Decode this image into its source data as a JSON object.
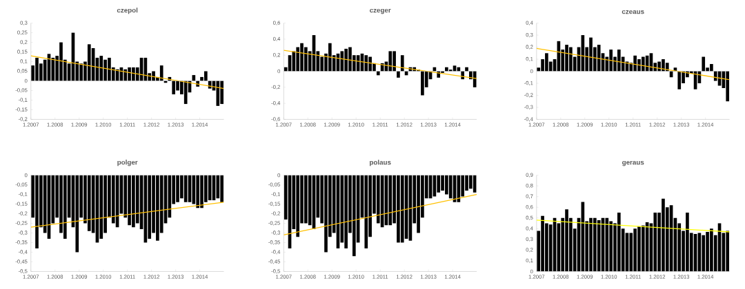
{
  "chart_data": [
    {
      "type": "bar",
      "title": "czepol",
      "x": [
        "2007-02",
        "2007-04",
        "2007-06",
        "2007-08",
        "2007-10",
        "2007-12",
        "2008-02",
        "2008-04",
        "2008-06",
        "2008-08",
        "2008-10",
        "2008-12",
        "2009-02",
        "2009-04",
        "2009-06",
        "2009-08",
        "2009-10",
        "2009-12",
        "2010-02",
        "2010-04",
        "2010-06",
        "2010-08",
        "2010-10",
        "2010-12",
        "2011-02",
        "2011-04",
        "2011-06",
        "2011-08",
        "2011-10",
        "2011-12",
        "2012-02",
        "2012-04",
        "2012-06",
        "2012-08",
        "2012-10",
        "2012-12",
        "2013-02",
        "2013-04",
        "2013-06",
        "2013-08",
        "2013-10",
        "2013-12",
        "2014-02",
        "2014-04",
        "2014-06",
        "2014-08",
        "2014-10",
        "2014-12"
      ],
      "series": [
        {
          "color": "#000000",
          "values": [
            0.08,
            0.12,
            0.09,
            0.11,
            0.14,
            0.12,
            0.13,
            0.2,
            0.11,
            0.09,
            0.25,
            0.1,
            0.09,
            0.1,
            0.19,
            0.17,
            0.12,
            0.13,
            0.11,
            0.12,
            0.07,
            0.06,
            0.07,
            0.06,
            0.07,
            0.07,
            0.07,
            0.12,
            0.12,
            0.04,
            0.05,
            0.02,
            0.08,
            -0.01,
            0.02,
            -0.07,
            -0.05,
            -0.07,
            -0.12,
            -0.06,
            0.03,
            -0.03,
            0.02,
            0.05,
            -0.04,
            -0.05,
            -0.13,
            -0.12
          ]
        },
        {
          "type": "line",
          "color": "#ffc000",
          "x": [
            "2007-01",
            "2015-01"
          ],
          "values": [
            0.13,
            -0.04
          ]
        }
      ],
      "xlim": [
        "2007-01",
        "2015-01"
      ],
      "xticks": [
        {
          "value": "2007-01",
          "label": "1.2007"
        },
        {
          "value": "2008-01",
          "label": "1.2008"
        },
        {
          "value": "2009-01",
          "label": "1.2009"
        },
        {
          "value": "2010-01",
          "label": "1.2010"
        },
        {
          "value": "2011-01",
          "label": "1.2011"
        },
        {
          "value": "2012-01",
          "label": "1.2012"
        },
        {
          "value": "2013-01",
          "label": "1.2013"
        },
        {
          "value": "2014-01",
          "label": "1.2014"
        }
      ],
      "ylim": [
        -0.2,
        0.3
      ],
      "yticks": [
        {
          "value": -0.2,
          "label": "-0,2"
        },
        {
          "value": -0.15,
          "label": "-0,15"
        },
        {
          "value": -0.1,
          "label": "-0,1"
        },
        {
          "value": -0.05,
          "label": "-0,05"
        },
        0,
        {
          "value": 0.05,
          "label": "0,05"
        },
        {
          "value": 0.1,
          "label": "0,1"
        },
        {
          "value": 0.15,
          "label": "0,15"
        },
        {
          "value": 0.2,
          "label": "0,2"
        },
        {
          "value": 0.25,
          "label": "0,25"
        },
        {
          "value": 0.3,
          "label": "0,3"
        }
      ]
    },
    {
      "type": "bar",
      "title": "czeger",
      "x": [
        "2007-02",
        "2007-04",
        "2007-06",
        "2007-08",
        "2007-10",
        "2007-12",
        "2008-02",
        "2008-04",
        "2008-06",
        "2008-08",
        "2008-10",
        "2008-12",
        "2009-02",
        "2009-04",
        "2009-06",
        "2009-08",
        "2009-10",
        "2009-12",
        "2010-02",
        "2010-04",
        "2010-06",
        "2010-08",
        "2010-10",
        "2010-12",
        "2011-02",
        "2011-04",
        "2011-06",
        "2011-08",
        "2011-10",
        "2011-12",
        "2012-02",
        "2012-04",
        "2012-06",
        "2012-08",
        "2012-10",
        "2012-12",
        "2013-02",
        "2013-04",
        "2013-06",
        "2013-08",
        "2013-10",
        "2013-12",
        "2014-02",
        "2014-04",
        "2014-06",
        "2014-08",
        "2014-10",
        "2014-12"
      ],
      "series": [
        {
          "color": "#000000",
          "values": [
            0.05,
            0.2,
            0.25,
            0.3,
            0.35,
            0.3,
            0.25,
            0.45,
            0.25,
            0.18,
            0.22,
            0.35,
            0.2,
            0.22,
            0.25,
            0.28,
            0.3,
            0.2,
            0.2,
            0.22,
            0.2,
            0.18,
            0.1,
            -0.05,
            0.1,
            0.12,
            0.25,
            0.25,
            -0.08,
            0.2,
            -0.05,
            0.05,
            0.05,
            0.02,
            -0.3,
            -0.2,
            -0.1,
            0.05,
            -0.08,
            -0.02,
            0.05,
            0.02,
            0.07,
            0.05,
            -0.1,
            0.05,
            -0.1,
            -0.2
          ]
        },
        {
          "type": "line",
          "color": "#ffc000",
          "x": [
            "2007-01",
            "2015-01"
          ],
          "values": [
            0.26,
            -0.09
          ]
        }
      ],
      "xlim": [
        "2007-01",
        "2015-01"
      ],
      "xticks": [
        {
          "value": "2007-01",
          "label": "1.2007"
        },
        {
          "value": "2008-01",
          "label": "1.2008"
        },
        {
          "value": "2009-01",
          "label": "1.2009"
        },
        {
          "value": "2010-01",
          "label": "1.2010"
        },
        {
          "value": "2011-01",
          "label": "1.2011"
        },
        {
          "value": "2012-01",
          "label": "1.2012"
        },
        {
          "value": "2013-01",
          "label": "1.2013"
        },
        {
          "value": "2014-01",
          "label": "1.2014"
        }
      ],
      "ylim": [
        -0.6,
        0.6
      ],
      "yticks": [
        {
          "value": -0.6,
          "label": "-0,6"
        },
        {
          "value": -0.4,
          "label": "-0,4"
        },
        {
          "value": -0.2,
          "label": "-0,2"
        },
        0,
        {
          "value": 0.2,
          "label": "0,2"
        },
        {
          "value": 0.4,
          "label": "0,4"
        },
        {
          "value": 0.6,
          "label": "0,6"
        }
      ]
    },
    {
      "type": "bar",
      "title": "czeaus",
      "x": [
        "2007-02",
        "2007-04",
        "2007-06",
        "2007-08",
        "2007-10",
        "2007-12",
        "2008-02",
        "2008-04",
        "2008-06",
        "2008-08",
        "2008-10",
        "2008-12",
        "2009-02",
        "2009-04",
        "2009-06",
        "2009-08",
        "2009-10",
        "2009-12",
        "2010-02",
        "2010-04",
        "2010-06",
        "2010-08",
        "2010-10",
        "2010-12",
        "2011-02",
        "2011-04",
        "2011-06",
        "2011-08",
        "2011-10",
        "2011-12",
        "2012-02",
        "2012-04",
        "2012-06",
        "2012-08",
        "2012-10",
        "2012-12",
        "2013-02",
        "2013-04",
        "2013-06",
        "2013-08",
        "2013-10",
        "2013-12",
        "2014-02",
        "2014-04",
        "2014-06",
        "2014-08",
        "2014-10",
        "2014-12"
      ],
      "series": [
        {
          "color": "#000000",
          "values": [
            0.03,
            0.1,
            0.15,
            0.08,
            0.1,
            0.25,
            0.18,
            0.22,
            0.2,
            0.12,
            0.2,
            0.3,
            0.2,
            0.28,
            0.2,
            0.22,
            0.15,
            0.12,
            0.18,
            0.12,
            0.18,
            0.12,
            0.08,
            0.07,
            0.13,
            0.1,
            0.12,
            0.13,
            0.15,
            0.07,
            0.08,
            0.1,
            0.07,
            -0.05,
            0.03,
            -0.15,
            -0.1,
            -0.05,
            -0.02,
            -0.15,
            -0.1,
            0.12,
            0.03,
            0.06,
            -0.08,
            -0.12,
            -0.14,
            -0.25
          ]
        },
        {
          "type": "line",
          "color": "#ffc000",
          "x": [
            "2007-01",
            "2015-01"
          ],
          "values": [
            0.19,
            -0.07
          ]
        }
      ],
      "xlim": [
        "2007-01",
        "2015-01"
      ],
      "xticks": [
        {
          "value": "2007-01",
          "label": "1.2007"
        },
        {
          "value": "2008-01",
          "label": "1.2008"
        },
        {
          "value": "2009-01",
          "label": "1.2009"
        },
        {
          "value": "2010-01",
          "label": "1.2010"
        },
        {
          "value": "2011-01",
          "label": "1.2011"
        },
        {
          "value": "2012-01",
          "label": "1.2012"
        },
        {
          "value": "2013-01",
          "label": "1.2013"
        },
        {
          "value": "2014-01",
          "label": "1.2014"
        }
      ],
      "ylim": [
        -0.4,
        0.4
      ],
      "yticks": [
        {
          "value": -0.4,
          "label": "-0,4"
        },
        {
          "value": -0.3,
          "label": "-0,3"
        },
        {
          "value": -0.2,
          "label": "-0,2"
        },
        {
          "value": -0.1,
          "label": "-0,1"
        },
        0,
        {
          "value": 0.1,
          "label": "0,1"
        },
        {
          "value": 0.2,
          "label": "0,2"
        },
        {
          "value": 0.3,
          "label": "0,3"
        },
        {
          "value": 0.4,
          "label": "0,4"
        }
      ]
    },
    {
      "type": "bar",
      "title": "polger",
      "x": [
        "2007-02",
        "2007-04",
        "2007-06",
        "2007-08",
        "2007-10",
        "2007-12",
        "2008-02",
        "2008-04",
        "2008-06",
        "2008-08",
        "2008-10",
        "2008-12",
        "2009-02",
        "2009-04",
        "2009-06",
        "2009-08",
        "2009-10",
        "2009-12",
        "2010-02",
        "2010-04",
        "2010-06",
        "2010-08",
        "2010-10",
        "2010-12",
        "2011-02",
        "2011-04",
        "2011-06",
        "2011-08",
        "2011-10",
        "2011-12",
        "2012-02",
        "2012-04",
        "2012-06",
        "2012-08",
        "2012-10",
        "2012-12",
        "2013-02",
        "2013-04",
        "2013-06",
        "2013-08",
        "2013-10",
        "2013-12",
        "2014-02",
        "2014-04",
        "2014-06",
        "2014-08",
        "2014-10",
        "2014-12"
      ],
      "series": [
        {
          "color": "#000000",
          "values": [
            -0.22,
            -0.38,
            -0.27,
            -0.3,
            -0.33,
            -0.25,
            -0.22,
            -0.3,
            -0.33,
            -0.22,
            -0.27,
            -0.4,
            -0.22,
            -0.25,
            -0.29,
            -0.3,
            -0.35,
            -0.33,
            -0.3,
            -0.22,
            -0.25,
            -0.27,
            -0.2,
            -0.22,
            -0.26,
            -0.27,
            -0.25,
            -0.28,
            -0.35,
            -0.33,
            -0.3,
            -0.34,
            -0.3,
            -0.25,
            -0.22,
            -0.15,
            -0.14,
            -0.12,
            -0.14,
            -0.14,
            -0.15,
            -0.17,
            -0.17,
            -0.14,
            -0.13,
            -0.13,
            -0.12,
            -0.14
          ]
        },
        {
          "type": "line",
          "color": "#ffc000",
          "x": [
            "2007-01",
            "2015-01"
          ],
          "values": [
            -0.27,
            -0.14
          ]
        }
      ],
      "xlim": [
        "2007-01",
        "2015-01"
      ],
      "xticks": [
        {
          "value": "2007-01",
          "label": "1.2007"
        },
        {
          "value": "2008-01",
          "label": "1.2008"
        },
        {
          "value": "2009-01",
          "label": "1.2009"
        },
        {
          "value": "2010-01",
          "label": "1.2010"
        },
        {
          "value": "2011-01",
          "label": "1.2011"
        },
        {
          "value": "2012-01",
          "label": "1.2012"
        },
        {
          "value": "2013-01",
          "label": "1.2013"
        },
        {
          "value": "2014-01",
          "label": "1.2014"
        }
      ],
      "ylim": [
        -0.5,
        0
      ],
      "yticks": [
        {
          "value": -0.5,
          "label": "-0,5"
        },
        {
          "value": -0.45,
          "label": "-0,45"
        },
        {
          "value": -0.4,
          "label": "-0,4"
        },
        {
          "value": -0.35,
          "label": "-0,35"
        },
        {
          "value": -0.3,
          "label": "-0,3"
        },
        {
          "value": -0.25,
          "label": "-0,25"
        },
        {
          "value": -0.2,
          "label": "-0,2"
        },
        {
          "value": -0.15,
          "label": "-0,15"
        },
        {
          "value": -0.1,
          "label": "-0,1"
        },
        {
          "value": -0.05,
          "label": "-0,05"
        },
        0
      ]
    },
    {
      "type": "bar",
      "title": "polaus",
      "x": [
        "2007-02",
        "2007-04",
        "2007-06",
        "2007-08",
        "2007-10",
        "2007-12",
        "2008-02",
        "2008-04",
        "2008-06",
        "2008-08",
        "2008-10",
        "2008-12",
        "2009-02",
        "2009-04",
        "2009-06",
        "2009-08",
        "2009-10",
        "2009-12",
        "2010-02",
        "2010-04",
        "2010-06",
        "2010-08",
        "2010-10",
        "2010-12",
        "2011-02",
        "2011-04",
        "2011-06",
        "2011-08",
        "2011-10",
        "2011-12",
        "2012-02",
        "2012-04",
        "2012-06",
        "2012-08",
        "2012-10",
        "2012-12",
        "2013-02",
        "2013-04",
        "2013-06",
        "2013-08",
        "2013-10",
        "2013-12",
        "2014-02",
        "2014-04",
        "2014-06",
        "2014-08",
        "2014-10",
        "2014-12"
      ],
      "series": [
        {
          "color": "#000000",
          "values": [
            -0.23,
            -0.38,
            -0.28,
            -0.32,
            -0.25,
            -0.25,
            -0.26,
            -0.28,
            -0.22,
            -0.25,
            -0.4,
            -0.32,
            -0.3,
            -0.38,
            -0.35,
            -0.38,
            -0.3,
            -0.42,
            -0.35,
            -0.22,
            -0.38,
            -0.32,
            -0.2,
            -0.25,
            -0.27,
            -0.26,
            -0.26,
            -0.25,
            -0.35,
            -0.35,
            -0.33,
            -0.34,
            -0.25,
            -0.3,
            -0.22,
            -0.12,
            -0.12,
            -0.11,
            -0.09,
            -0.08,
            -0.1,
            -0.12,
            -0.14,
            -0.14,
            -0.11,
            -0.08,
            -0.07,
            -0.09
          ]
        },
        {
          "type": "line",
          "color": "#ffc000",
          "x": [
            "2007-01",
            "2015-01"
          ],
          "values": [
            -0.31,
            -0.1
          ]
        }
      ],
      "xlim": [
        "2007-01",
        "2015-01"
      ],
      "xticks": [
        {
          "value": "2007-01",
          "label": "1.2007"
        },
        {
          "value": "2008-01",
          "label": "1.2008"
        },
        {
          "value": "2009-01",
          "label": "1.2009"
        },
        {
          "value": "2010-01",
          "label": "1.2010"
        },
        {
          "value": "2011-01",
          "label": "1.2011"
        },
        {
          "value": "2012-01",
          "label": "1.2012"
        },
        {
          "value": "2013-01",
          "label": "1.2013"
        },
        {
          "value": "2014-01",
          "label": "1.2014"
        }
      ],
      "ylim": [
        -0.5,
        0
      ],
      "yticks": [
        {
          "value": -0.5,
          "label": "-0,5"
        },
        {
          "value": -0.45,
          "label": "-0,45"
        },
        {
          "value": -0.4,
          "label": "-0,4"
        },
        {
          "value": -0.35,
          "label": "-0,35"
        },
        {
          "value": -0.3,
          "label": "-0,3"
        },
        {
          "value": -0.25,
          "label": "-0,25"
        },
        {
          "value": -0.2,
          "label": "-0,2"
        },
        {
          "value": -0.15,
          "label": "-0,15"
        },
        {
          "value": -0.1,
          "label": "-0,1"
        },
        {
          "value": -0.05,
          "label": "-0,05"
        },
        0
      ]
    },
    {
      "type": "bar",
      "title": "geraus",
      "x": [
        "2007-02",
        "2007-04",
        "2007-06",
        "2007-08",
        "2007-10",
        "2007-12",
        "2008-02",
        "2008-04",
        "2008-06",
        "2008-08",
        "2008-10",
        "2008-12",
        "2009-02",
        "2009-04",
        "2009-06",
        "2009-08",
        "2009-10",
        "2009-12",
        "2010-02",
        "2010-04",
        "2010-06",
        "2010-08",
        "2010-10",
        "2010-12",
        "2011-02",
        "2011-04",
        "2011-06",
        "2011-08",
        "2011-10",
        "2011-12",
        "2012-02",
        "2012-04",
        "2012-06",
        "2012-08",
        "2012-10",
        "2012-12",
        "2013-02",
        "2013-04",
        "2013-06",
        "2013-08",
        "2013-10",
        "2013-12",
        "2014-02",
        "2014-04",
        "2014-06",
        "2014-08",
        "2014-10",
        "2014-12"
      ],
      "series": [
        {
          "color": "#000000",
          "values": [
            0.38,
            0.52,
            0.45,
            0.44,
            0.5,
            0.45,
            0.5,
            0.58,
            0.5,
            0.4,
            0.5,
            0.65,
            0.47,
            0.5,
            0.5,
            0.48,
            0.5,
            0.5,
            0.47,
            0.45,
            0.55,
            0.4,
            0.36,
            0.36,
            0.4,
            0.42,
            0.43,
            0.46,
            0.45,
            0.55,
            0.55,
            0.68,
            0.6,
            0.62,
            0.5,
            0.45,
            0.38,
            0.55,
            0.36,
            0.35,
            0.36,
            0.34,
            0.37,
            0.4,
            0.34,
            0.45,
            0.36,
            0.38
          ]
        },
        {
          "type": "line",
          "color": "#ffff00",
          "x": [
            "2007-01",
            "2015-01"
          ],
          "values": [
            0.48,
            0.37
          ]
        }
      ],
      "xlim": [
        "2007-01",
        "2015-01"
      ],
      "xticks": [
        {
          "value": "2007-01",
          "label": "1.2007"
        },
        {
          "value": "2008-01",
          "label": "1.2008"
        },
        {
          "value": "2009-01",
          "label": "1.2009"
        },
        {
          "value": "2010-01",
          "label": "1.2010"
        },
        {
          "value": "2011-01",
          "label": "1.2011"
        },
        {
          "value": "2012-01",
          "label": "1.2012"
        },
        {
          "value": "2013-01",
          "label": "1.2013"
        },
        {
          "value": "2014-01",
          "label": "1.2014"
        }
      ],
      "ylim": [
        0,
        0.9
      ],
      "yticks": [
        0,
        {
          "value": 0.1,
          "label": "0,1"
        },
        {
          "value": 0.2,
          "label": "0,2"
        },
        {
          "value": 0.3,
          "label": "0,3"
        },
        {
          "value": 0.4,
          "label": "0,4"
        },
        {
          "value": 0.5,
          "label": "0,5"
        },
        {
          "value": 0.6,
          "label": "0,6"
        },
        {
          "value": 0.7,
          "label": "0,7"
        },
        {
          "value": 0.8,
          "label": "0,8"
        },
        {
          "value": 0.9,
          "label": "0,9"
        }
      ]
    }
  ]
}
